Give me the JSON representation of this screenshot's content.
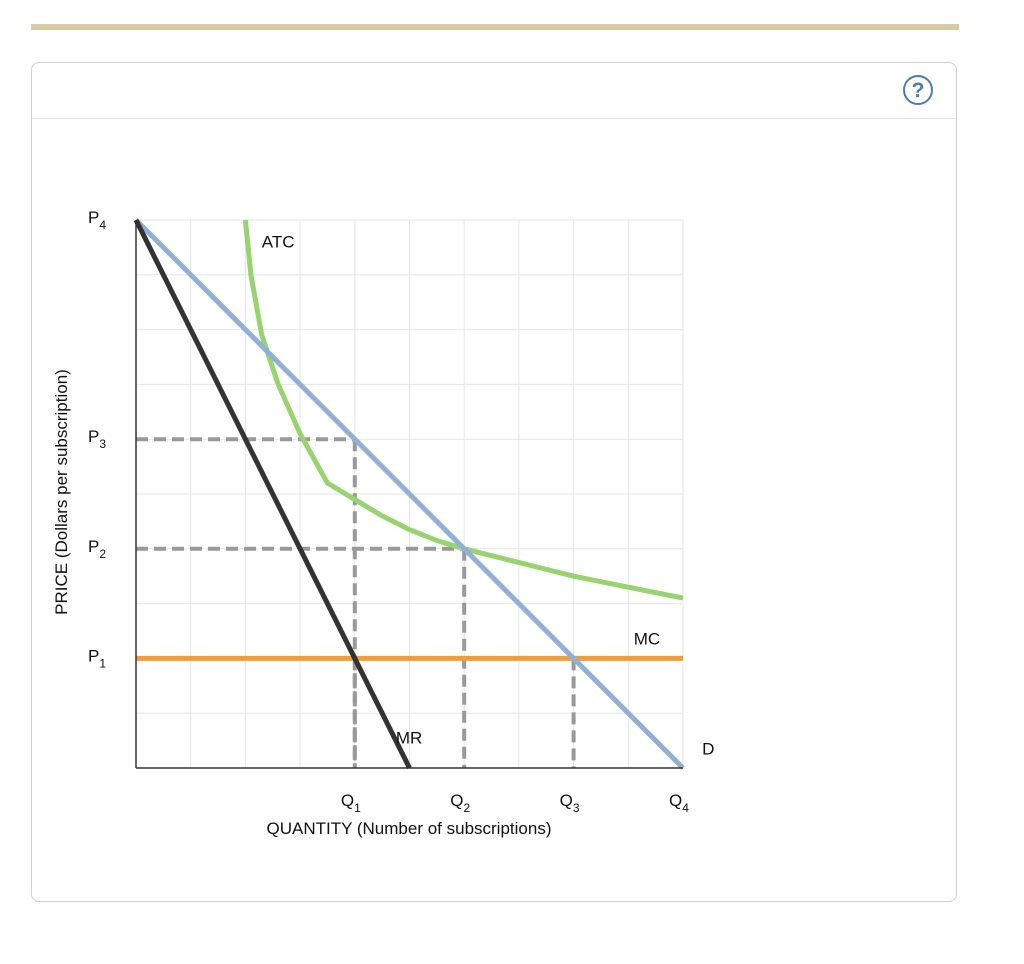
{
  "chart_data": {
    "type": "line",
    "xlabel": "QUANTITY (Number of subscriptions)",
    "ylabel": "PRICE (Dollars per subscription)",
    "xlim": [
      0,
      10
    ],
    "ylim": [
      0,
      10
    ],
    "grid": true,
    "x_ticks": [
      {
        "base": "Q",
        "sub": "1",
        "value": 4
      },
      {
        "base": "Q",
        "sub": "2",
        "value": 6
      },
      {
        "base": "Q",
        "sub": "3",
        "value": 8
      },
      {
        "base": "Q",
        "sub": "4",
        "value": 10
      }
    ],
    "y_ticks": [
      {
        "base": "P",
        "sub": "1",
        "value": 2
      },
      {
        "base": "P",
        "sub": "2",
        "value": 4
      },
      {
        "base": "P",
        "sub": "3",
        "value": 6
      },
      {
        "base": "P",
        "sub": "4",
        "value": 10
      }
    ],
    "series": [
      {
        "name": "D",
        "color": "#8fb1d6",
        "x": [
          0,
          10
        ],
        "y": [
          10,
          0
        ]
      },
      {
        "name": "MR",
        "color": "#333333",
        "x": [
          0,
          5
        ],
        "y": [
          10,
          0
        ]
      },
      {
        "name": "MC",
        "color": "#f39c3a",
        "x": [
          0,
          10
        ],
        "y": [
          2,
          2
        ]
      },
      {
        "name": "ATC",
        "color": "#97d46f",
        "x": [
          2,
          2.1,
          2.3,
          2.6,
          3,
          3.5,
          4,
          4.5,
          5,
          5.5,
          6,
          7,
          8,
          9,
          10
        ],
        "y": [
          10,
          9.0,
          7.9,
          7.0,
          6.1,
          5.2,
          4.9,
          4.6,
          4.35,
          4.15,
          4.0,
          3.75,
          3.5,
          3.3,
          3.1
        ]
      }
    ],
    "annotations": [
      {
        "text": "ATC",
        "x": 2.3,
        "y": 9.5
      },
      {
        "text": "MC",
        "x": 9.1,
        "y": 2.25
      },
      {
        "text": "MR",
        "x": 4.75,
        "y": 0.45
      },
      {
        "text": "D",
        "x": 10.35,
        "y": 0.25
      }
    ],
    "guides": [
      {
        "x": 4,
        "y": 6
      },
      {
        "x": 6,
        "y": 4
      },
      {
        "x": 8,
        "y": 2
      },
      {
        "x": 4,
        "y": 2
      }
    ],
    "colors": {
      "guide": "#999999",
      "grid": "#e6e6e6",
      "axis": "#333333"
    }
  },
  "ui": {
    "help_icon": "question-circle-icon",
    "help_glyph": "?"
  }
}
